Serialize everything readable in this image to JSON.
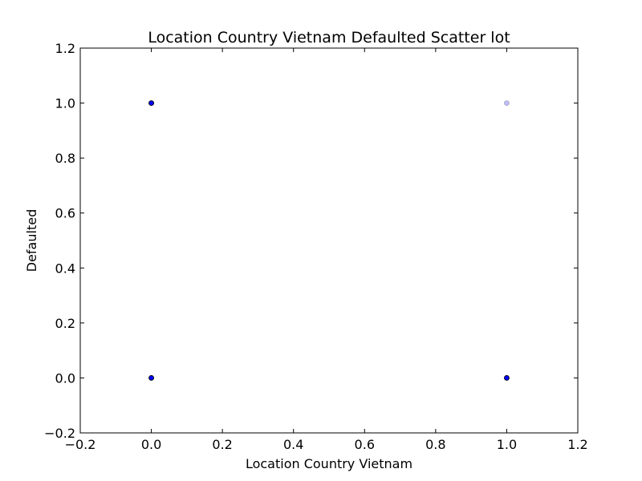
{
  "chart_data": {
    "type": "scatter",
    "title": "Location Country Vietnam Defaulted Scatter lot",
    "xlabel": "Location Country Vietnam",
    "ylabel": "Defaulted",
    "xlim": [
      -0.2,
      1.2
    ],
    "ylim": [
      -0.2,
      1.2
    ],
    "x_ticks": [
      -0.2,
      0.0,
      0.2,
      0.4,
      0.6,
      0.8,
      1.0,
      1.2
    ],
    "y_ticks": [
      -0.2,
      0.0,
      0.2,
      0.4,
      0.6,
      0.8,
      1.0,
      1.2
    ],
    "x_tick_labels": [
      "−0.2",
      "0.0",
      "0.2",
      "0.4",
      "0.6",
      "0.8",
      "1.0",
      "1.2"
    ],
    "y_tick_labels": [
      "−0.2",
      "0.0",
      "0.2",
      "0.4",
      "0.6",
      "0.8",
      "1.0",
      "1.2"
    ],
    "grid": false,
    "legend": "none",
    "marker_color": "#0000ff",
    "points": [
      {
        "x": 0,
        "y": 1,
        "opacity": 1.0
      },
      {
        "x": 0,
        "y": 0,
        "opacity": 1.0
      },
      {
        "x": 1,
        "y": 0,
        "opacity": 1.0
      },
      {
        "x": 1,
        "y": 1,
        "opacity": 0.25
      }
    ]
  }
}
